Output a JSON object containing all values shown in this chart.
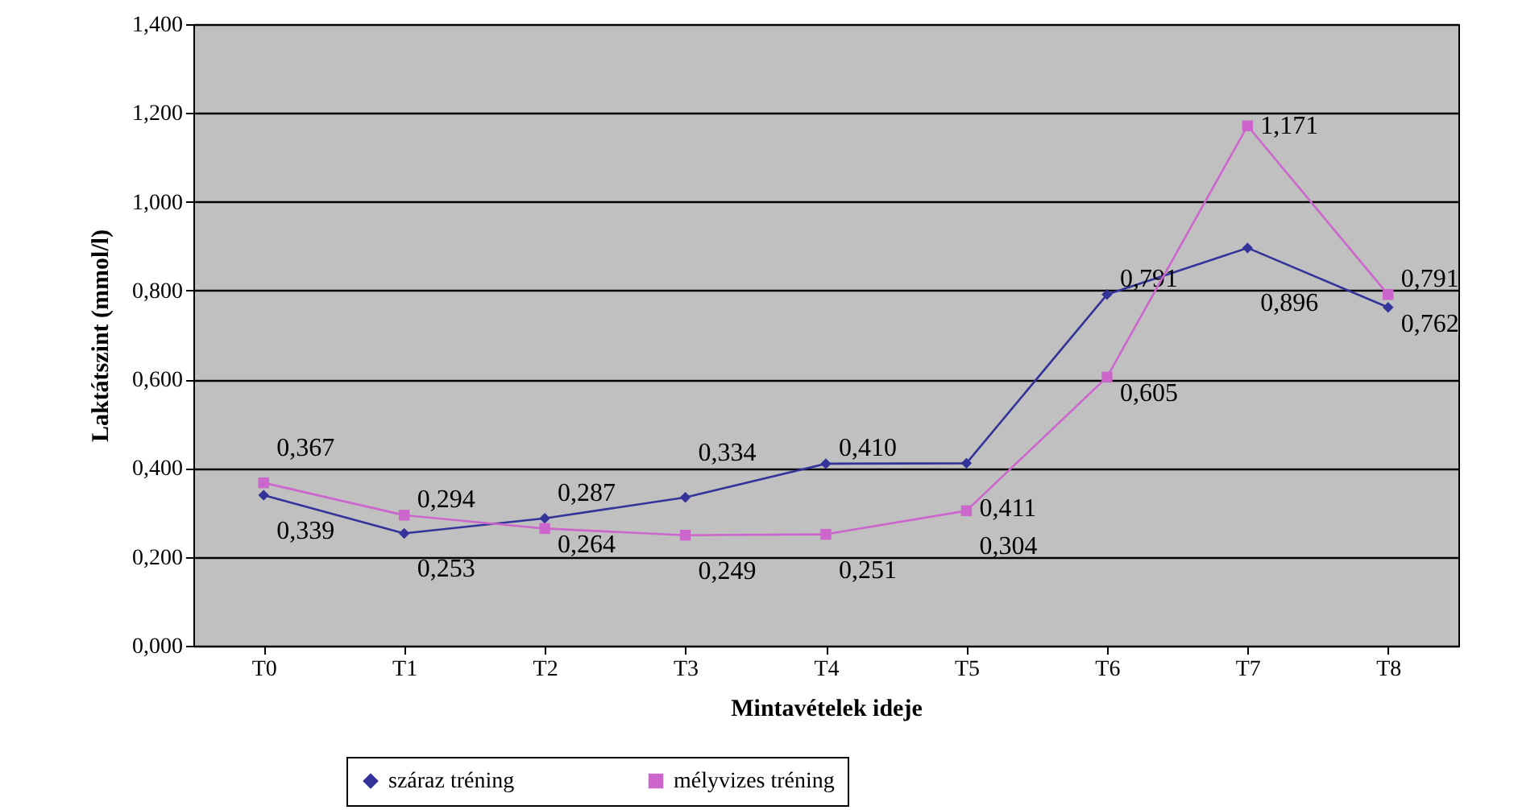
{
  "chart_data": {
    "type": "line",
    "xlabel": "Mintavételek ideje",
    "ylabel": "Laktátszint (mmol/l)",
    "categories": [
      "T0",
      "T1",
      "T2",
      "T3",
      "T4",
      "T5",
      "T6",
      "T7",
      "T8"
    ],
    "series": [
      {
        "name": "száraz tréning",
        "color": "#333399",
        "marker": "diamond",
        "values": [
          0.339,
          0.253,
          0.287,
          0.334,
          0.41,
          0.411,
          0.791,
          0.896,
          0.762
        ],
        "value_labels": [
          "0,339",
          "0,253",
          "0,287",
          "0,334",
          "0,410",
          "0,411",
          "0,791",
          "0,896",
          "0,762"
        ]
      },
      {
        "name": "mélyvizes tréning",
        "color": "#cc66cc",
        "marker": "square",
        "values": [
          0.367,
          0.294,
          0.264,
          0.249,
          0.251,
          0.304,
          0.605,
          1.171,
          0.791
        ],
        "value_labels": [
          "0,367",
          "0,294",
          "0,264",
          "0,249",
          "0,251",
          "0,304",
          "0,605",
          "1,171",
          "0,791"
        ]
      }
    ],
    "ylim": [
      0,
      1.4
    ],
    "yticks": [
      {
        "value": 0,
        "label": "0,000"
      },
      {
        "value": 0.2,
        "label": "0,200"
      },
      {
        "value": 0.4,
        "label": "0,400"
      },
      {
        "value": 0.6,
        "label": "0,600"
      },
      {
        "value": 0.8,
        "label": "0,800"
      },
      {
        "value": 1.0,
        "label": "1,000"
      },
      {
        "value": 1.2,
        "label": "1,200"
      },
      {
        "value": 1.4,
        "label": "1,400"
      }
    ],
    "grid": "y",
    "legend": "bottom"
  }
}
